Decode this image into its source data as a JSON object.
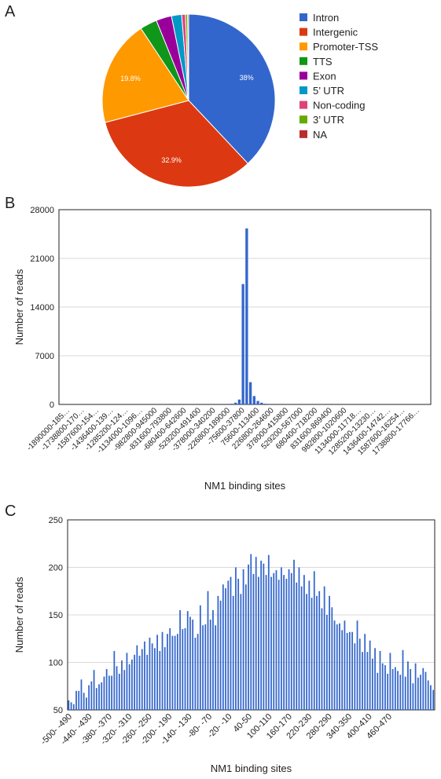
{
  "panels": {
    "a": "A",
    "b": "B",
    "c": "C"
  },
  "chart_data": [
    {
      "type": "pie",
      "title": "",
      "legend_position": "right",
      "slices": [
        {
          "label": "Intron",
          "value": 38.0,
          "color": "#3366cc",
          "data_label": "38%"
        },
        {
          "label": "Intergenic",
          "value": 32.9,
          "color": "#dc3912",
          "data_label": "32.9%"
        },
        {
          "label": "Promoter-TSS",
          "value": 19.8,
          "color": "#ff9900",
          "data_label": "19.8%"
        },
        {
          "label": "TTS",
          "value": 3.2,
          "color": "#109618",
          "data_label": ""
        },
        {
          "label": "Exon",
          "value": 2.9,
          "color": "#990099",
          "data_label": ""
        },
        {
          "label": "5’ UTR",
          "value": 1.9,
          "color": "#0099c6",
          "data_label": ""
        },
        {
          "label": "Non-coding",
          "value": 0.7,
          "color": "#dd4477",
          "data_label": ""
        },
        {
          "label": "3’ UTR",
          "value": 0.4,
          "color": "#66aa00",
          "data_label": ""
        },
        {
          "label": "NA",
          "value": 0.2,
          "color": "#b82e2e",
          "data_label": ""
        }
      ]
    },
    {
      "type": "bar",
      "title": "",
      "xlabel": "NM1 binding sites",
      "ylabel": "Number of reads",
      "ylim": [
        0,
        28000
      ],
      "yticks": [
        0,
        7000,
        14000,
        21000,
        28000
      ],
      "grid": true,
      "bar_color": "#3366cc",
      "tick_labels": [
        "-1890000-185…",
        "-1738800-170…",
        "-1587600-154…",
        "-1436400-139…",
        "-1285200-124…",
        "-1134000-1096…",
        "-982800-945000",
        "-831600-793800",
        "-680400-642600",
        "-529200-491400",
        "-378000-340200",
        "-226800-189000",
        "-75600-37800",
        "75600-113400",
        "226800-264600",
        "378000-415800",
        "529200-567000",
        "680400-718200",
        "831600-869400",
        "982800-1020600",
        "1134000-11718…",
        "1285200-13230…",
        "1436400-14742…",
        "1587600-16254…",
        "1738800-17766…"
      ],
      "bin_count": 100,
      "nonzero_bins": [
        {
          "index": 46,
          "value": 100
        },
        {
          "index": 47,
          "value": 250
        },
        {
          "index": 48,
          "value": 700
        },
        {
          "index": 49,
          "value": 17300
        },
        {
          "index": 50,
          "value": 25300
        },
        {
          "index": 51,
          "value": 3200
        },
        {
          "index": 52,
          "value": 1200
        },
        {
          "index": 53,
          "value": 500
        },
        {
          "index": 54,
          "value": 250
        },
        {
          "index": 55,
          "value": 100
        }
      ]
    },
    {
      "type": "bar",
      "title": "",
      "xlabel": "NM1 binding sites",
      "ylabel": "Number of reads",
      "ylim": [
        50,
        250
      ],
      "yticks": [
        50,
        100,
        150,
        200,
        250
      ],
      "grid": true,
      "bar_color": "#3366cc",
      "tick_labels": [
        "-500- -490",
        "-440- -430",
        "-380- -370",
        "-320- -310",
        "-260- -250",
        "-200- -190",
        "-140- -130",
        "-80- -70",
        "-20- -10",
        "40-50",
        "100-110",
        "160-170",
        "220-230",
        "280-290",
        "340-350",
        "400-410",
        "460-470"
      ],
      "values": [
        60,
        58,
        56,
        70,
        70,
        82,
        68,
        63,
        76,
        80,
        92,
        73,
        77,
        79,
        85,
        93,
        86,
        86,
        112,
        96,
        88,
        102,
        92,
        110,
        98,
        103,
        108,
        118,
        107,
        114,
        122,
        108,
        126,
        120,
        115,
        129,
        112,
        132,
        116,
        130,
        136,
        128,
        128,
        130,
        155,
        135,
        136,
        154,
        148,
        145,
        126,
        130,
        160,
        139,
        140,
        175,
        145,
        155,
        139,
        170,
        165,
        182,
        178,
        186,
        190,
        170,
        200,
        188,
        172,
        198,
        182,
        203,
        214,
        193,
        211,
        190,
        207,
        204,
        192,
        213,
        190,
        194,
        197,
        187,
        200,
        192,
        188,
        198,
        194,
        208,
        184,
        200,
        180,
        192,
        172,
        186,
        168,
        196,
        170,
        175,
        157,
        180,
        150,
        170,
        158,
        144,
        140,
        141,
        134,
        144,
        131,
        132,
        132,
        120,
        144,
        125,
        111,
        130,
        111,
        123,
        104,
        115,
        89,
        112,
        99,
        97,
        88,
        110,
        93,
        95,
        91,
        87,
        113,
        85,
        101,
        93,
        78,
        99,
        84,
        87,
        94,
        90,
        81,
        76,
        71
      ]
    }
  ]
}
